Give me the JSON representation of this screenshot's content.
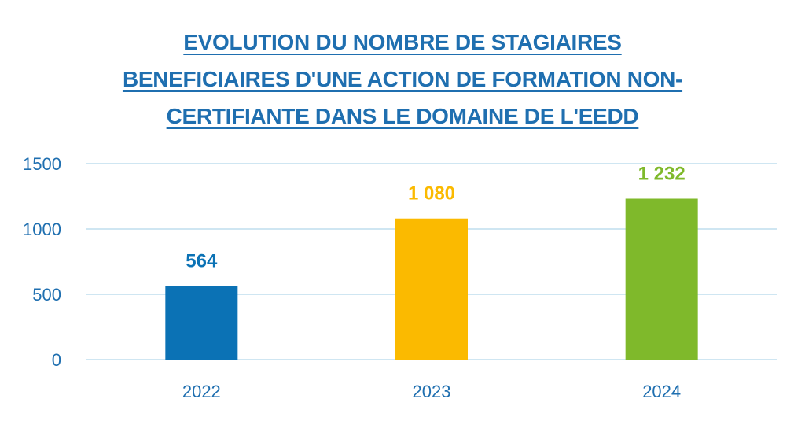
{
  "chart_data": {
    "type": "bar",
    "title_lines": [
      "EVOLUTION DU NOMBRE DE STAGIAIRES",
      "BENEFICIAIRES D'UNE ACTION DE FORMATION NON-",
      "CERTIFIANTE DANS LE DOMAINE DE L'EEDD"
    ],
    "categories": [
      "2022",
      "2023",
      "2024"
    ],
    "values": [
      564,
      1080,
      1232
    ],
    "value_labels": [
      "564",
      "1 080",
      "1 232"
    ],
    "bar_colors": [
      "#0b72b5",
      "#fbba00",
      "#7fb92b"
    ],
    "ylim": [
      0,
      1500
    ],
    "yticks": [
      0,
      500,
      1000,
      1500
    ],
    "ytick_labels": [
      "0",
      "500",
      "1000",
      "1500"
    ],
    "grid": true,
    "legend": "none",
    "colors": {
      "title": "#1f6fb0",
      "axis_text": "#1f6fb0",
      "grid": "#cfe6f2"
    }
  }
}
